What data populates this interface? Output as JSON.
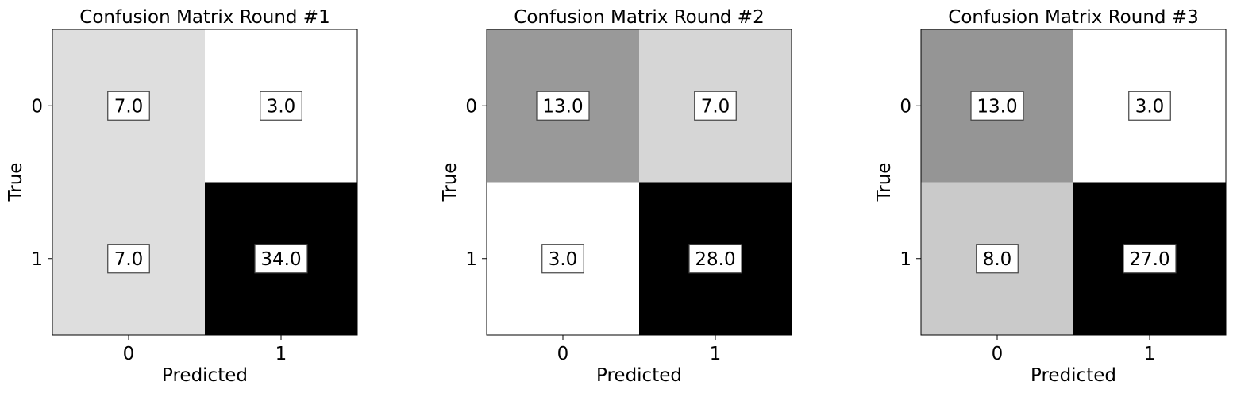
{
  "chart_data": [
    {
      "type": "heatmap",
      "title": "Confusion Matrix Round #1",
      "xlabel": "Predicted",
      "ylabel": "True",
      "x_categories": [
        "0",
        "1"
      ],
      "y_categories": [
        "0",
        "1"
      ],
      "values": [
        [
          7.0,
          3.0
        ],
        [
          7.0,
          34.0
        ]
      ],
      "labels": [
        [
          "7.0",
          "3.0"
        ],
        [
          "7.0",
          "34.0"
        ]
      ],
      "colormap": "gray_r"
    },
    {
      "type": "heatmap",
      "title": "Confusion Matrix Round #2",
      "xlabel": "Predicted",
      "ylabel": "True",
      "x_categories": [
        "0",
        "1"
      ],
      "y_categories": [
        "0",
        "1"
      ],
      "values": [
        [
          13.0,
          7.0
        ],
        [
          3.0,
          28.0
        ]
      ],
      "labels": [
        [
          "13.0",
          "7.0"
        ],
        [
          "3.0",
          "28.0"
        ]
      ],
      "colormap": "gray_r"
    },
    {
      "type": "heatmap",
      "title": "Confusion Matrix Round #3",
      "xlabel": "Predicted",
      "ylabel": "True",
      "x_categories": [
        "0",
        "1"
      ],
      "y_categories": [
        "0",
        "1"
      ],
      "values": [
        [
          13.0,
          3.0
        ],
        [
          8.0,
          27.0
        ]
      ],
      "labels": [
        [
          "13.0",
          "3.0"
        ],
        [
          "8.0",
          "27.0"
        ]
      ],
      "colormap": "gray_r"
    }
  ]
}
